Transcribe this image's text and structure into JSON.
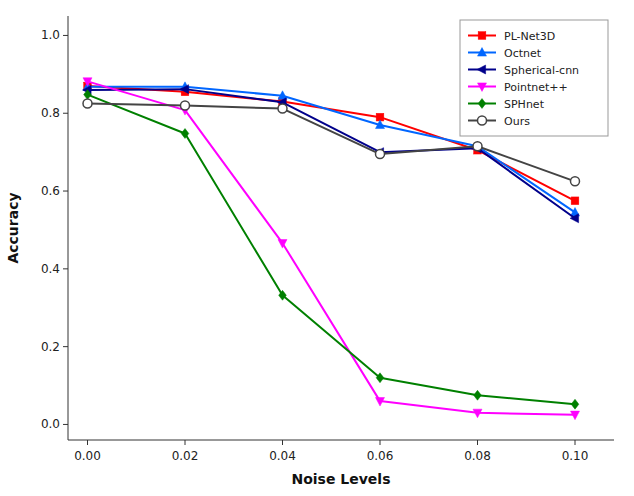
{
  "chart_data": {
    "type": "line",
    "x": [
      0.0,
      0.02,
      0.04,
      0.06,
      0.08,
      0.1
    ],
    "series": [
      {
        "name": "PL-Net3D",
        "color": "#ff0000",
        "marker": "square",
        "values": [
          0.87,
          0.855,
          0.83,
          0.79,
          0.705,
          0.575
        ]
      },
      {
        "name": "Octnet",
        "color": "#0066ff",
        "marker": "triangle-up",
        "values": [
          0.868,
          0.868,
          0.845,
          0.77,
          0.715,
          0.545
        ]
      },
      {
        "name": "Spherical-cnn",
        "color": "#00008b",
        "marker": "triangle-left",
        "values": [
          0.86,
          0.862,
          0.828,
          0.7,
          0.71,
          0.53
        ]
      },
      {
        "name": "Pointnet++",
        "color": "#ff00ff",
        "marker": "triangle-down",
        "values": [
          0.882,
          0.808,
          0.466,
          0.06,
          0.03,
          0.025
        ]
      },
      {
        "name": "SPHnet",
        "color": "#008000",
        "marker": "diamond",
        "values": [
          0.848,
          0.748,
          0.332,
          0.12,
          0.075,
          0.052
        ]
      },
      {
        "name": "Ours",
        "color": "#444444",
        "marker": "open-circle",
        "values": [
          0.825,
          0.82,
          0.812,
          0.695,
          0.715,
          0.625
        ]
      }
    ],
    "xlabel": "Noise Levels",
    "ylabel": "Accuracy",
    "xlim": [
      -0.004,
      0.108
    ],
    "ylim": [
      -0.04,
      1.05
    ],
    "xticks": [
      {
        "value": 0.0,
        "label": "0.00"
      },
      0.02,
      0.04,
      0.06,
      0.08,
      {
        "value": 0.1,
        "label": "0.10"
      }
    ],
    "yticks": [
      {
        "value": 0.0,
        "label": "0.0"
      },
      0.2,
      0.4,
      0.6,
      0.8,
      {
        "value": 1.0,
        "label": "1.0"
      }
    ],
    "grid": false,
    "legend": "upper right"
  }
}
